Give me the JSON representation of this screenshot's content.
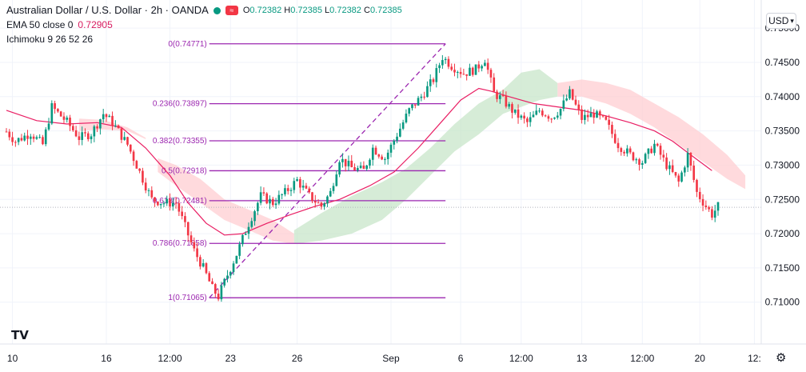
{
  "legend": {
    "symbol_title": "Australian Dollar / U.S. Dollar · 2h · OANDA",
    "badge": "≈",
    "open_label": "O",
    "open": "0.72382",
    "high_label": "H",
    "high": "0.72385",
    "low_label": "L",
    "low": "0.72382",
    "close_label": "C",
    "close": "0.72385",
    "ema_label": "EMA 50 close 0",
    "ema_value": "0.72905",
    "ichimoku_label": "Ichimoku 9 26 52 26"
  },
  "currency": "USD",
  "logo_text": "TV",
  "colors": {
    "up": "#089981",
    "down": "#f23645",
    "fib": "#9c27b0",
    "ema": "#e91e63",
    "cloud_bull": "#c8e6c9",
    "cloud_bear": "#ffcdd2",
    "grid": "#f0f3fa",
    "axis_text": "#131722"
  },
  "chart_data": {
    "type": "candlestick",
    "symbol": "AUDUSD",
    "timeframe": "2h",
    "y_ticks": [
      0.75,
      0.745,
      0.74,
      0.735,
      0.73,
      0.725,
      0.72,
      0.715,
      0.71
    ],
    "y_tick_labels": [
      "0.75000",
      "0.74500",
      "0.74000",
      "0.73500",
      "0.73000",
      "0.72500",
      "0.72000",
      "0.71500",
      "0.71000"
    ],
    "ylim": [
      0.7067,
      0.7506
    ],
    "xlim": [
      0,
      235
    ],
    "x_ticks": [
      {
        "bar": 2,
        "label": "10"
      },
      {
        "bar": 33,
        "label": "16"
      },
      {
        "bar": 54,
        "label": "12:00"
      },
      {
        "bar": 74,
        "label": "23"
      },
      {
        "bar": 96,
        "label": "26"
      },
      {
        "bar": 127,
        "label": "Sep"
      },
      {
        "bar": 150,
        "label": "6"
      },
      {
        "bar": 170,
        "label": "12:00"
      },
      {
        "bar": 190,
        "label": "13"
      },
      {
        "bar": 210,
        "label": "12:00"
      },
      {
        "bar": 229,
        "label": "20"
      },
      {
        "bar": 247,
        "label": "12:"
      }
    ],
    "anchors": [
      [
        0,
        0.7349
      ],
      [
        3,
        0.7335
      ],
      [
        8,
        0.7347
      ],
      [
        12,
        0.733
      ],
      [
        15,
        0.7385
      ],
      [
        20,
        0.7363
      ],
      [
        24,
        0.734
      ],
      [
        28,
        0.7346
      ],
      [
        32,
        0.7375
      ],
      [
        35,
        0.7362
      ],
      [
        40,
        0.733
      ],
      [
        44,
        0.729
      ],
      [
        48,
        0.725
      ],
      [
        52,
        0.7245
      ],
      [
        56,
        0.7245
      ],
      [
        59,
        0.721
      ],
      [
        62,
        0.7175
      ],
      [
        65,
        0.715
      ],
      [
        68,
        0.712
      ],
      [
        70,
        0.7108
      ],
      [
        73,
        0.714
      ],
      [
        76,
        0.717
      ],
      [
        80,
        0.7215
      ],
      [
        84,
        0.7255
      ],
      [
        88,
        0.7245
      ],
      [
        92,
        0.726
      ],
      [
        96,
        0.7278
      ],
      [
        100,
        0.7255
      ],
      [
        104,
        0.724
      ],
      [
        107,
        0.726
      ],
      [
        110,
        0.731
      ],
      [
        114,
        0.7296
      ],
      [
        118,
        0.7292
      ],
      [
        121,
        0.7325
      ],
      [
        125,
        0.731
      ],
      [
        129,
        0.7345
      ],
      [
        133,
        0.738
      ],
      [
        137,
        0.74
      ],
      [
        141,
        0.7425
      ],
      [
        144,
        0.7458
      ],
      [
        147,
        0.7445
      ],
      [
        151,
        0.7434
      ],
      [
        155,
        0.744
      ],
      [
        158,
        0.7455
      ],
      [
        161,
        0.7405
      ],
      [
        164,
        0.7395
      ],
      [
        168,
        0.7375
      ],
      [
        172,
        0.7362
      ],
      [
        176,
        0.738
      ],
      [
        180,
        0.737
      ],
      [
        183,
        0.7382
      ],
      [
        186,
        0.7405
      ],
      [
        190,
        0.7368
      ],
      [
        194,
        0.7375
      ],
      [
        198,
        0.7362
      ],
      [
        202,
        0.733
      ],
      [
        206,
        0.7315
      ],
      [
        210,
        0.7305
      ],
      [
        214,
        0.733
      ],
      [
        218,
        0.73
      ],
      [
        222,
        0.7275
      ],
      [
        225,
        0.7315
      ],
      [
        228,
        0.726
      ],
      [
        231,
        0.724
      ],
      [
        233,
        0.7228
      ],
      [
        235,
        0.724
      ]
    ],
    "ema50_label": "EMA 50",
    "ema50": [
      [
        0,
        0.738
      ],
      [
        10,
        0.7365
      ],
      [
        20,
        0.736
      ],
      [
        30,
        0.7362
      ],
      [
        38,
        0.7355
      ],
      [
        46,
        0.7325
      ],
      [
        54,
        0.7285
      ],
      [
        60,
        0.7245
      ],
      [
        66,
        0.7215
      ],
      [
        72,
        0.7198
      ],
      [
        78,
        0.72
      ],
      [
        86,
        0.7215
      ],
      [
        94,
        0.7228
      ],
      [
        102,
        0.724
      ],
      [
        110,
        0.725
      ],
      [
        120,
        0.727
      ],
      [
        128,
        0.729
      ],
      [
        136,
        0.7325
      ],
      [
        144,
        0.7365
      ],
      [
        150,
        0.7395
      ],
      [
        156,
        0.7412
      ],
      [
        160,
        0.7408
      ],
      [
        166,
        0.74
      ],
      [
        174,
        0.739
      ],
      [
        182,
        0.7385
      ],
      [
        190,
        0.738
      ],
      [
        198,
        0.7372
      ],
      [
        206,
        0.7362
      ],
      [
        214,
        0.735
      ],
      [
        220,
        0.7335
      ],
      [
        226,
        0.7315
      ],
      [
        233,
        0.7292
      ]
    ],
    "ichimoku_cloud": [
      {
        "kind": "bear",
        "upper": [
          [
            24,
            0.7368
          ],
          [
            32,
            0.7366
          ],
          [
            40,
            0.7355
          ],
          [
            46,
            0.734
          ]
        ],
        "lower": [
          [
            24,
            0.735
          ],
          [
            32,
            0.7352
          ],
          [
            40,
            0.735
          ],
          [
            46,
            0.7338
          ]
        ]
      },
      {
        "kind": "bear",
        "upper": [
          [
            50,
            0.731
          ],
          [
            56,
            0.73
          ],
          [
            64,
            0.728
          ],
          [
            72,
            0.725
          ],
          [
            80,
            0.7235
          ],
          [
            88,
            0.722
          ],
          [
            95,
            0.72
          ]
        ],
        "lower": [
          [
            50,
            0.729
          ],
          [
            56,
            0.727
          ],
          [
            64,
            0.7245
          ],
          [
            72,
            0.722
          ],
          [
            80,
            0.7205
          ],
          [
            88,
            0.719
          ],
          [
            95,
            0.7185
          ]
        ]
      },
      {
        "kind": "bull",
        "upper": [
          [
            95,
            0.7205
          ],
          [
            104,
            0.723
          ],
          [
            114,
            0.7255
          ],
          [
            124,
            0.7275
          ],
          [
            132,
            0.7295
          ],
          [
            140,
            0.7325
          ],
          [
            148,
            0.736
          ],
          [
            156,
            0.739
          ],
          [
            164,
            0.741
          ],
          [
            170,
            0.7435
          ],
          [
            176,
            0.744
          ],
          [
            182,
            0.742
          ]
        ],
        "lower": [
          [
            95,
            0.7185
          ],
          [
            104,
            0.719
          ],
          [
            114,
            0.72
          ],
          [
            124,
            0.722
          ],
          [
            132,
            0.725
          ],
          [
            140,
            0.7285
          ],
          [
            148,
            0.732
          ],
          [
            156,
            0.7345
          ],
          [
            164,
            0.7375
          ],
          [
            170,
            0.7385
          ],
          [
            176,
            0.7395
          ],
          [
            182,
            0.74
          ]
        ]
      },
      {
        "kind": "bear",
        "upper": [
          [
            182,
            0.742
          ],
          [
            190,
            0.7425
          ],
          [
            198,
            0.742
          ],
          [
            206,
            0.741
          ],
          [
            214,
            0.739
          ],
          [
            222,
            0.737
          ],
          [
            230,
            0.7345
          ],
          [
            238,
            0.7315
          ],
          [
            244,
            0.7285
          ]
        ],
        "lower": [
          [
            182,
            0.74
          ],
          [
            190,
            0.74
          ],
          [
            198,
            0.739
          ],
          [
            206,
            0.7375
          ],
          [
            214,
            0.7355
          ],
          [
            222,
            0.733
          ],
          [
            230,
            0.7305
          ],
          [
            238,
            0.728
          ],
          [
            244,
            0.7265
          ]
        ]
      }
    ],
    "fibonacci": {
      "start_bar": 67,
      "end_bar": 145,
      "low": 0.71065,
      "high": 0.74771,
      "levels": [
        {
          "label": "0(0.74771)",
          "price": 0.74771
        },
        {
          "label": "0.236(0.73897)",
          "price": 0.73897
        },
        {
          "label": "0.382(0.73355)",
          "price": 0.73355
        },
        {
          "label": "0.5(0.72918)",
          "price": 0.72918
        },
        {
          "label": "0.618(0.72481)",
          "price": 0.72481
        },
        {
          "label": "0.786(0.71858)",
          "price": 0.71858
        },
        {
          "label": "1(0.71065)",
          "price": 0.71065
        }
      ]
    },
    "last_price_line": 0.72385
  }
}
